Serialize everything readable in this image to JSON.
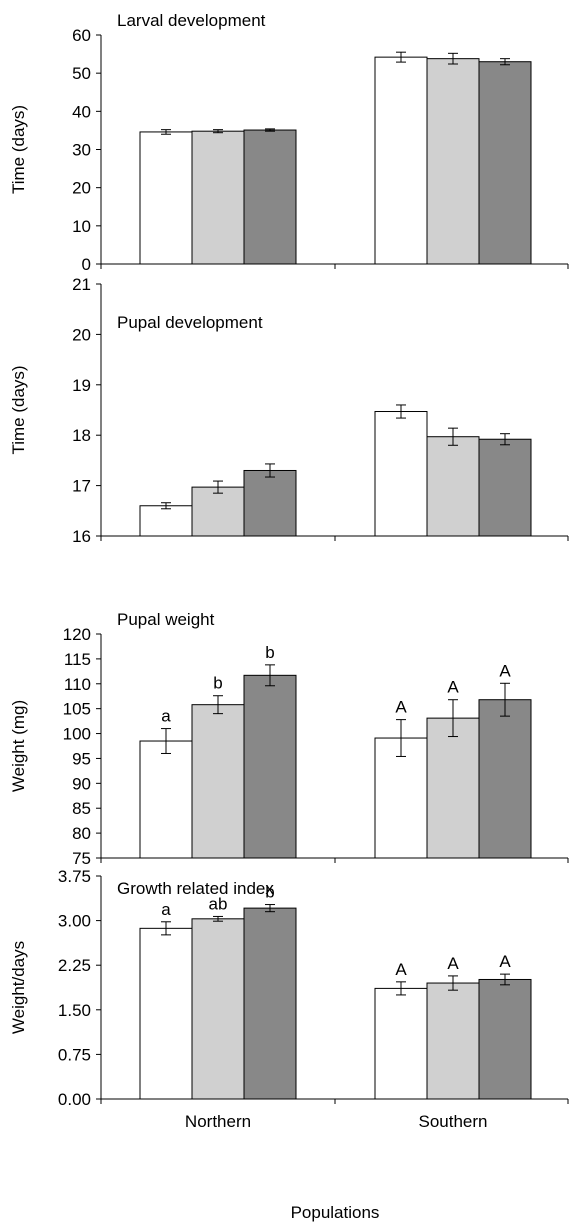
{
  "figure": {
    "xlabel": "Populations"
  },
  "chart_data": [
    {
      "type": "bar",
      "title": "Larval development",
      "ylabel": "Time (days)",
      "ylim": [
        0,
        60
      ],
      "yticks": [
        "0",
        "10",
        "20",
        "30",
        "40",
        "50",
        "60"
      ],
      "categories": [
        "Northern",
        "Southern"
      ],
      "show_category_labels": false,
      "series": [
        {
          "values": [
            34.6,
            54.2
          ],
          "errors": [
            0.6,
            1.3
          ],
          "color": "#ffffff",
          "letters": [
            "",
            ""
          ]
        },
        {
          "values": [
            34.8,
            53.8
          ],
          "errors": [
            0.4,
            1.4
          ],
          "color": "#d0d0d0",
          "letters": [
            "",
            ""
          ]
        },
        {
          "values": [
            35.1,
            53.0
          ],
          "errors": [
            0.3,
            0.8
          ],
          "color": "#888888",
          "letters": [
            "",
            ""
          ]
        }
      ]
    },
    {
      "type": "bar",
      "title": "Pupal development",
      "ylabel": "Time (days)",
      "ylim": [
        16,
        21
      ],
      "yticks": [
        "16",
        "17",
        "18",
        "19",
        "20",
        "21"
      ],
      "categories": [
        "Northern",
        "Southern"
      ],
      "show_category_labels": false,
      "series": [
        {
          "values": [
            16.6,
            18.47
          ],
          "errors": [
            0.06,
            0.13
          ],
          "color": "#ffffff",
          "letters": [
            "",
            ""
          ]
        },
        {
          "values": [
            16.97,
            17.97
          ],
          "errors": [
            0.12,
            0.17
          ],
          "color": "#d0d0d0",
          "letters": [
            "",
            ""
          ]
        },
        {
          "values": [
            17.3,
            17.92
          ],
          "errors": [
            0.13,
            0.11
          ],
          "color": "#888888",
          "letters": [
            "",
            ""
          ]
        }
      ]
    },
    {
      "type": "bar",
      "title": "Pupal weight",
      "ylabel": "Weight (mg)",
      "ylim": [
        75,
        120
      ],
      "yticks": [
        "75",
        "80",
        "85",
        "90",
        "95",
        "100",
        "105",
        "110",
        "115",
        "120"
      ],
      "categories": [
        "Northern",
        "Southern"
      ],
      "show_category_labels": false,
      "series": [
        {
          "values": [
            98.5,
            99.1
          ],
          "errors": [
            2.5,
            3.7
          ],
          "color": "#ffffff",
          "letters": [
            "a",
            "A"
          ]
        },
        {
          "values": [
            105.8,
            103.1
          ],
          "errors": [
            1.8,
            3.7
          ],
          "color": "#d0d0d0",
          "letters": [
            "b",
            "A"
          ]
        },
        {
          "values": [
            111.7,
            106.8
          ],
          "errors": [
            2.1,
            3.3
          ],
          "color": "#888888",
          "letters": [
            "b",
            "A"
          ]
        }
      ]
    },
    {
      "type": "bar",
      "title": "Growth related index",
      "ylabel": "Weight/days",
      "ylim": [
        0,
        3.75
      ],
      "yticks": [
        "0.00",
        "0.75",
        "1.50",
        "2.25",
        "3.00",
        "3.75"
      ],
      "categories": [
        "Northern",
        "Southern"
      ],
      "show_category_labels": true,
      "series": [
        {
          "values": [
            2.87,
            1.86
          ],
          "errors": [
            0.11,
            0.11
          ],
          "color": "#ffffff",
          "letters": [
            "a",
            "A"
          ]
        },
        {
          "values": [
            3.03,
            1.95
          ],
          "errors": [
            0.04,
            0.12
          ],
          "color": "#d0d0d0",
          "letters": [
            "ab",
            "A"
          ]
        },
        {
          "values": [
            3.21,
            2.01
          ],
          "errors": [
            0.06,
            0.09
          ],
          "color": "#888888",
          "letters": [
            "b",
            "A"
          ]
        }
      ]
    }
  ]
}
